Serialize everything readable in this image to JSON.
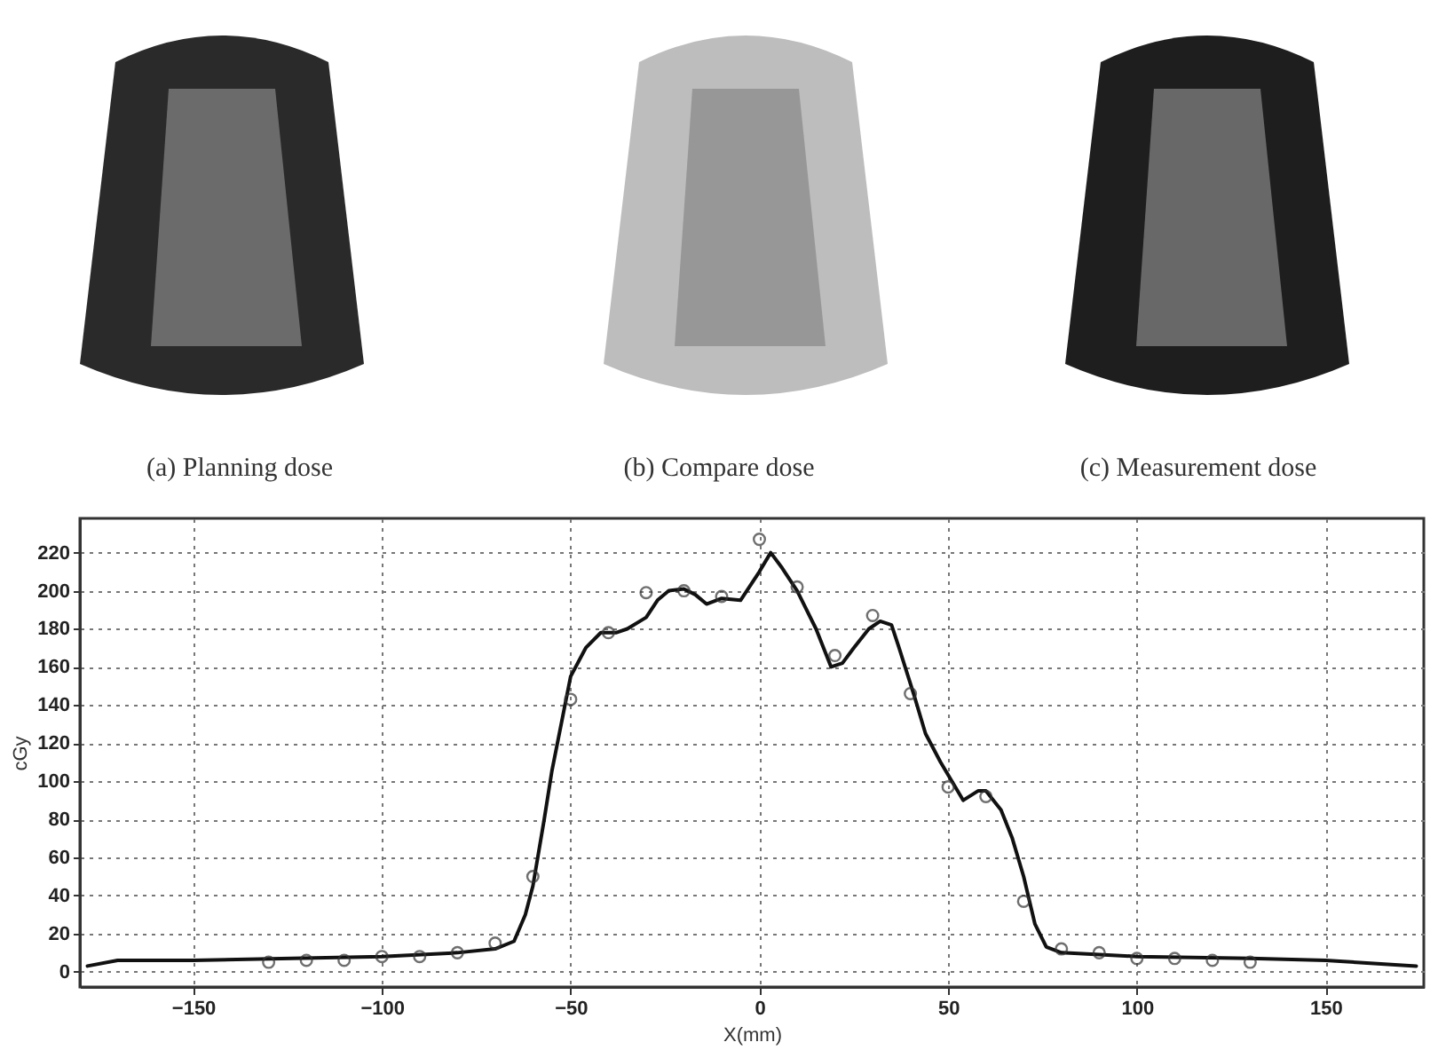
{
  "chart_data": {
    "type": "line",
    "xlabel": "X(mm)",
    "ylabel": "cGy",
    "annotations": [
      "(a) Planning dose",
      "(b) Compare dose",
      "(c) Measurement dose"
    ],
    "xlim": [
      -180,
      176
    ],
    "ylim": [
      -8,
      238
    ],
    "xticks": [
      -150,
      -100,
      -50,
      0,
      50,
      100,
      150
    ],
    "yticks": [
      0,
      20,
      40,
      60,
      80,
      100,
      120,
      140,
      160,
      180,
      200,
      220
    ],
    "grid": true,
    "series": [
      {
        "color": "#111111",
        "marker": "none",
        "line_style": "solid",
        "x": [
          -178,
          -170,
          -150,
          -100,
          -80,
          -70,
          -65,
          -62,
          -60,
          -57,
          -55,
          -52,
          -50,
          -46,
          -42,
          -38,
          -35,
          -30,
          -27,
          -24,
          -20,
          -17,
          -14,
          -10,
          -5,
          0,
          3,
          6,
          10,
          15,
          19,
          22,
          25,
          29,
          32,
          35,
          37,
          41,
          44,
          48,
          51,
          54,
          58,
          60,
          64,
          67,
          70,
          73,
          76,
          80,
          100,
          130,
          150,
          174
        ],
        "values": [
          3,
          6,
          6,
          8,
          10,
          12,
          16,
          30,
          45,
          80,
          105,
          135,
          155,
          170,
          178,
          178,
          180,
          186,
          195,
          200,
          201,
          198,
          193,
          196,
          195,
          210,
          220,
          212,
          200,
          180,
          160,
          162,
          170,
          180,
          184,
          182,
          170,
          145,
          125,
          110,
          100,
          90,
          95,
          95,
          85,
          70,
          50,
          25,
          13,
          10,
          8,
          7,
          6,
          3
        ]
      },
      {
        "type": "scatter",
        "color": "#333333",
        "marker": "circle",
        "x": [
          -130,
          -120,
          -110,
          -100,
          -90,
          -80,
          -70,
          -60,
          -50,
          -40,
          -30,
          -20,
          -10,
          0,
          10,
          20,
          30,
          40,
          50,
          60,
          70,
          80,
          90,
          100,
          110,
          120,
          130
        ],
        "values": [
          5,
          6,
          6,
          8,
          8,
          10,
          15,
          50,
          143,
          178,
          199,
          200,
          197,
          227,
          202,
          166,
          187,
          146,
          97,
          92,
          37,
          12,
          10,
          7,
          7,
          6,
          5
        ]
      }
    ]
  }
}
